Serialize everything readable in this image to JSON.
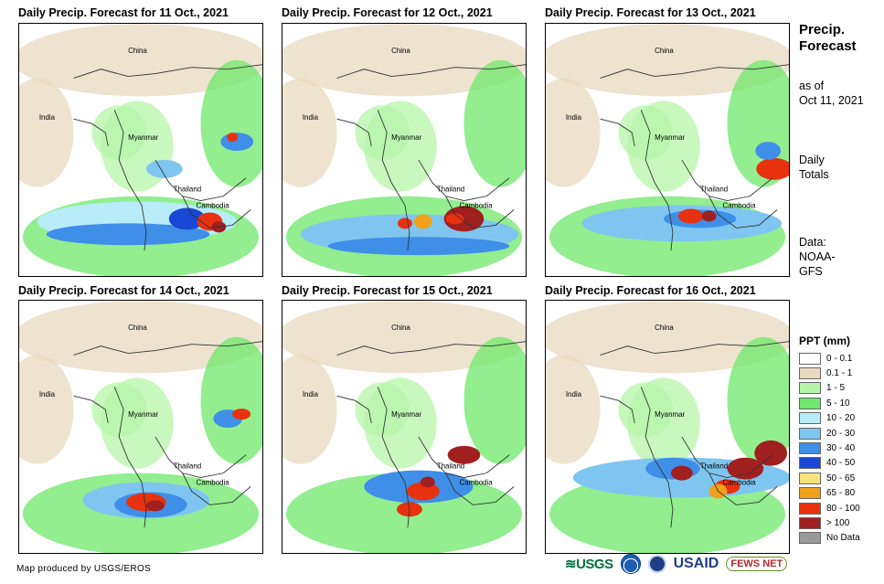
{
  "panels": [
    {
      "title": "Daily Precip. Forecast for 11 Oct., 2021"
    },
    {
      "title": "Daily Precip. Forecast for 12 Oct., 2021"
    },
    {
      "title": "Daily Precip. Forecast for 13 Oct., 2021"
    },
    {
      "title": "Daily Precip. Forecast for 14 Oct., 2021"
    },
    {
      "title": "Daily Precip. Forecast for 15 Oct., 2021"
    },
    {
      "title": "Daily Precip. Forecast for 16 Oct., 2021"
    }
  ],
  "map_labels": {
    "china": "China",
    "india": "India",
    "myanmar": "Myanmar",
    "thailand": "Thailand",
    "cambodia": "Cambodia"
  },
  "side": {
    "title": "Precip. Forecast",
    "asof_1": "as of",
    "asof_2": "Oct 11, 2021",
    "totals_1": "Daily",
    "totals_2": "Totals",
    "data_1": "Data:",
    "data_2": "NOAA-",
    "data_3": "GFS"
  },
  "legend": {
    "title": "PPT (mm)",
    "items": [
      {
        "label": "0 - 0.1",
        "color": "#ffffff"
      },
      {
        "label": "0.1 - 1",
        "color": "#e8d9bf"
      },
      {
        "label": "1 - 5",
        "color": "#b5f5a8"
      },
      {
        "label": "5 - 10",
        "color": "#6ee86a"
      },
      {
        "label": "10 - 20",
        "color": "#b8ecf8"
      },
      {
        "label": "20 - 30",
        "color": "#7ec6f0"
      },
      {
        "label": "30 - 40",
        "color": "#3f8ee8"
      },
      {
        "label": "40 - 50",
        "color": "#1a47d6"
      },
      {
        "label": "50 - 65",
        "color": "#f8e27a"
      },
      {
        "label": "65 - 80",
        "color": "#f2a01a"
      },
      {
        "label": "80 - 100",
        "color": "#e8310e"
      },
      {
        "label": "> 100",
        "color": "#a01f1f"
      },
      {
        "label": "No Data",
        "color": "#9a9a9a"
      }
    ]
  },
  "credit": "Map produced by USGS/EROS",
  "logos": {
    "usgs": "≋USGS",
    "usaid": "USAID",
    "fews": "FEWS NET"
  }
}
